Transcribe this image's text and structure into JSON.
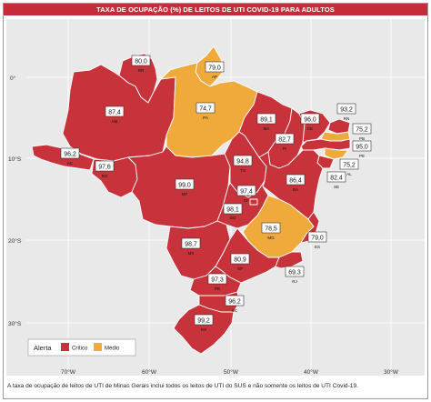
{
  "title": "TAXA DE OCUPAÇÃO (%) DE LEITOS DE UTI COVID-19 PARA ADULTOS",
  "footnote": "A taxa de ocupação de leitos de UTI de Minas Gerais inclui todos os leitos de UTI do SUS e não somente os leitos de UTI Covid-19.",
  "legend": {
    "title": "Alerta",
    "items": [
      {
        "label": "Crítico",
        "color": "#c8323a"
      },
      {
        "label": "Médio",
        "color": "#f0aa3c"
      }
    ]
  },
  "colors": {
    "critico": "#c8323a",
    "medio": "#f0aa3c",
    "background": "#e9e9e9",
    "grid": "#ffffff"
  },
  "axes": {
    "latitudes": [
      "0°",
      "10°S",
      "20°S",
      "30°S"
    ],
    "longitudes": [
      "70°W",
      "60°W",
      "50°W",
      "40°W",
      "30°W"
    ]
  },
  "states": [
    {
      "uf": "RR",
      "value": "80,0",
      "alert": "critico"
    },
    {
      "uf": "AP",
      "value": "79,0",
      "alert": "medio"
    },
    {
      "uf": "AM",
      "value": "87,4",
      "alert": "critico"
    },
    {
      "uf": "PA",
      "value": "74,7",
      "alert": "medio"
    },
    {
      "uf": "MA",
      "value": "89,1",
      "alert": "critico"
    },
    {
      "uf": "CE",
      "value": "96,0",
      "alert": "critico"
    },
    {
      "uf": "RN",
      "value": "93,2",
      "alert": "critico"
    },
    {
      "uf": "PB",
      "value": "75,2",
      "alert": "medio"
    },
    {
      "uf": "PI",
      "value": "82,7",
      "alert": "critico"
    },
    {
      "uf": "PE",
      "value": "95,0",
      "alert": "critico"
    },
    {
      "uf": "AL",
      "value": "75,2",
      "alert": "medio"
    },
    {
      "uf": "SE",
      "value": "82,4",
      "alert": "critico"
    },
    {
      "uf": "AC",
      "value": "96,2",
      "alert": "critico"
    },
    {
      "uf": "RO",
      "value": "97,6",
      "alert": "critico"
    },
    {
      "uf": "TO",
      "value": "94,8",
      "alert": "critico"
    },
    {
      "uf": "BA",
      "value": "86,4",
      "alert": "critico"
    },
    {
      "uf": "MT",
      "value": "99,0",
      "alert": "critico"
    },
    {
      "uf": "DF",
      "value": "97,4",
      "alert": "critico"
    },
    {
      "uf": "GO",
      "value": "98,1",
      "alert": "critico"
    },
    {
      "uf": "MG",
      "value": "78,5",
      "alert": "medio"
    },
    {
      "uf": "ES",
      "value": "79,0",
      "alert": "critico"
    },
    {
      "uf": "MS",
      "value": "98,7",
      "alert": "critico"
    },
    {
      "uf": "SP",
      "value": "80,9",
      "alert": "critico"
    },
    {
      "uf": "RJ",
      "value": "69,3",
      "alert": "critico"
    },
    {
      "uf": "PR",
      "value": "97,3",
      "alert": "critico"
    },
    {
      "uf": "SC",
      "value": "96,2",
      "alert": "critico"
    },
    {
      "uf": "RS",
      "value": "99,2",
      "alert": "critico"
    }
  ]
}
